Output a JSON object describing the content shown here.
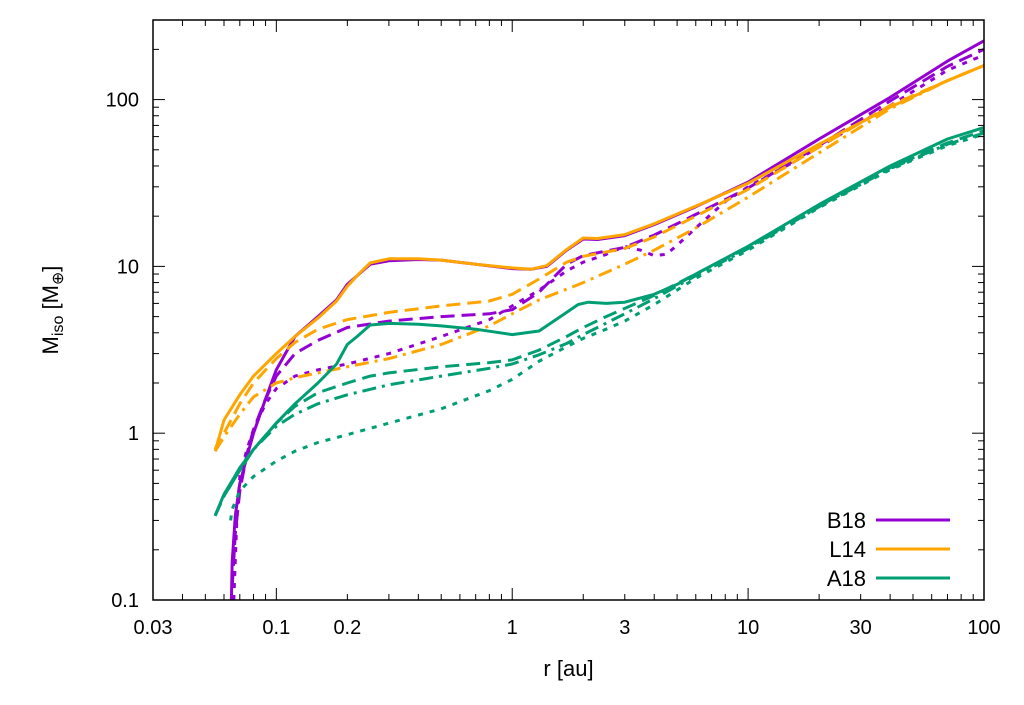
{
  "chart_data": {
    "type": "line",
    "title": "",
    "xlabel": "r [au]",
    "ylabel": {
      "main": "M",
      "sub": "iso",
      "unit_prefix": " [M",
      "unit_sub": "⊕",
      "unit_suffix": "]"
    },
    "xscale": "log",
    "yscale": "log",
    "xlim": [
      0.03,
      100
    ],
    "ylim": [
      0.1,
      300
    ],
    "xticks": [
      {
        "value": 0.03,
        "label": "0.03"
      },
      {
        "value": 0.1,
        "label": "0.1"
      },
      {
        "value": 0.2,
        "label": "0.2"
      },
      {
        "value": 1,
        "label": "1"
      },
      {
        "value": 3,
        "label": "3"
      },
      {
        "value": 10,
        "label": "10"
      },
      {
        "value": 30,
        "label": "30"
      },
      {
        "value": 100,
        "label": "100"
      }
    ],
    "yticks": [
      {
        "value": 0.1,
        "label": "0.1"
      },
      {
        "value": 1,
        "label": "1"
      },
      {
        "value": 10,
        "label": "10"
      },
      {
        "value": 100,
        "label": "100"
      }
    ],
    "grid": false,
    "legend_position": "bottom-right",
    "legend": [
      {
        "name": "B18",
        "color": "#9400d3"
      },
      {
        "name": "L14",
        "color": "#ffa500"
      },
      {
        "name": "A18",
        "color": "#009e73"
      }
    ],
    "series": [
      {
        "model": "B18",
        "style": "solid",
        "color": "#9400d3",
        "x": [
          0.0645,
          0.065,
          0.067,
          0.07,
          0.075,
          0.08,
          0.09,
          0.1,
          0.12,
          0.15,
          0.18,
          0.2,
          0.22,
          0.25,
          0.3,
          0.4,
          0.5,
          0.7,
          1.0,
          1.2,
          1.4,
          1.7,
          2.0,
          2.3,
          3.0,
          4.0,
          6.0,
          10,
          20,
          40,
          70,
          100
        ],
        "y": [
          0.1,
          0.17,
          0.32,
          0.5,
          0.72,
          1.0,
          1.6,
          2.4,
          3.8,
          5.0,
          6.3,
          7.8,
          8.8,
          10.3,
          10.8,
          11.0,
          10.9,
          10.3,
          9.7,
          9.6,
          10.0,
          12.5,
          14.6,
          14.5,
          15.3,
          17.8,
          22.8,
          32,
          58,
          103,
          170,
          225
        ]
      },
      {
        "model": "B18",
        "style": "dashed",
        "color": "#9400d3",
        "x": [
          0.065,
          0.067,
          0.07,
          0.075,
          0.08,
          0.09,
          0.1,
          0.12,
          0.15,
          0.2,
          0.3,
          0.5,
          0.8,
          1.0,
          1.3,
          1.7,
          2.0,
          3.0,
          4.0,
          6.0,
          10,
          20,
          40,
          70,
          100
        ],
        "y": [
          0.12,
          0.25,
          0.45,
          0.75,
          1.05,
          1.6,
          2.2,
          3.0,
          3.6,
          4.3,
          4.7,
          5.0,
          5.2,
          5.5,
          7.0,
          10.3,
          11.6,
          13.0,
          15.4,
          20.5,
          29.5,
          53,
          98,
          158,
          200
        ]
      },
      {
        "model": "B18",
        "style": "dotted",
        "color": "#9400d3",
        "x": [
          0.066,
          0.068,
          0.07,
          0.075,
          0.08,
          0.09,
          0.1,
          0.12,
          0.15,
          0.2,
          0.3,
          0.5,
          0.8,
          1.0,
          1.3,
          1.7,
          2.0,
          2.5,
          3.0,
          3.5,
          4.0,
          4.5,
          5.0,
          6.0,
          8.0,
          10,
          15,
          20,
          30,
          40,
          70,
          100
        ],
        "y": [
          0.1,
          0.3,
          0.55,
          0.8,
          1.05,
          1.5,
          1.85,
          2.2,
          2.4,
          2.6,
          3.0,
          3.8,
          4.8,
          5.8,
          7.2,
          9.4,
          10.6,
          11.8,
          13.2,
          12.5,
          11.6,
          11.8,
          13.4,
          17,
          24.5,
          30,
          41,
          52,
          73,
          92,
          150,
          185
        ]
      },
      {
        "model": "L14",
        "style": "solid",
        "color": "#ffa500",
        "x": [
          0.055,
          0.056,
          0.06,
          0.07,
          0.08,
          0.1,
          0.12,
          0.15,
          0.18,
          0.2,
          0.22,
          0.25,
          0.3,
          0.4,
          0.5,
          0.7,
          1.0,
          1.2,
          1.4,
          1.7,
          2.0,
          2.3,
          3.0,
          4.0,
          6.0,
          10,
          20,
          40,
          70,
          100
        ],
        "y": [
          0.8,
          0.85,
          1.2,
          1.7,
          2.2,
          3.0,
          3.8,
          4.9,
          6.2,
          7.6,
          8.8,
          10.5,
          11.1,
          11.1,
          10.9,
          10.3,
          9.8,
          9.6,
          10.1,
          12.6,
          14.8,
          14.7,
          15.5,
          18,
          23,
          31.5,
          54,
          90,
          130,
          160
        ]
      },
      {
        "model": "L14",
        "style": "dashed",
        "color": "#ffa500",
        "x": [
          0.055,
          0.06,
          0.07,
          0.08,
          0.1,
          0.12,
          0.15,
          0.2,
          0.3,
          0.5,
          0.8,
          1.0,
          1.3,
          1.7,
          2.0,
          3.0,
          4.0,
          6.0,
          10,
          20,
          40,
          70,
          100
        ],
        "y": [
          0.78,
          1.0,
          1.5,
          2.0,
          2.8,
          3.5,
          4.2,
          4.8,
          5.3,
          5.8,
          6.2,
          6.8,
          8.4,
          10.6,
          11.5,
          12.8,
          15.0,
          20.0,
          29,
          52,
          92,
          130,
          160
        ]
      },
      {
        "model": "L14",
        "style": "dashdot",
        "color": "#ffa500",
        "x": [
          0.055,
          0.06,
          0.07,
          0.08,
          0.1,
          0.12,
          0.15,
          0.2,
          0.3,
          0.5,
          0.8,
          1.0,
          1.3,
          1.7,
          2.0,
          3.0,
          4.0,
          6.0,
          10,
          20,
          40,
          70,
          100
        ],
        "y": [
          0.78,
          0.95,
          1.3,
          1.65,
          2.0,
          2.15,
          2.3,
          2.5,
          2.8,
          3.4,
          4.4,
          5.2,
          6.3,
          7.3,
          8.0,
          10.3,
          12.5,
          17,
          26,
          48,
          88,
          130,
          160
        ]
      },
      {
        "model": "A18",
        "style": "solid",
        "color": "#009e73",
        "x": [
          0.055,
          0.056,
          0.06,
          0.065,
          0.07,
          0.08,
          0.1,
          0.12,
          0.15,
          0.18,
          0.2,
          0.22,
          0.25,
          0.3,
          0.4,
          0.5,
          0.7,
          1.0,
          1.3,
          1.6,
          1.9,
          2.1,
          2.5,
          3.0,
          4.0,
          5.0,
          6.0,
          10,
          20,
          40,
          70,
          100
        ],
        "y": [
          0.32,
          0.34,
          0.43,
          0.52,
          0.62,
          0.8,
          1.15,
          1.5,
          2.0,
          2.6,
          3.4,
          3.8,
          4.45,
          4.55,
          4.5,
          4.4,
          4.2,
          3.9,
          4.1,
          5.0,
          5.9,
          6.1,
          6.0,
          6.1,
          6.8,
          7.8,
          9.0,
          13.2,
          23.5,
          40,
          58,
          68
        ]
      },
      {
        "model": "A18",
        "style": "dashed",
        "color": "#009e73",
        "x": [
          0.055,
          0.06,
          0.07,
          0.08,
          0.1,
          0.12,
          0.15,
          0.2,
          0.25,
          0.3,
          0.5,
          0.8,
          1.0,
          1.3,
          1.7,
          2.0,
          2.5,
          3.0,
          4.0,
          6.0,
          10,
          20,
          40,
          70,
          100
        ],
        "y": [
          0.32,
          0.42,
          0.6,
          0.8,
          1.15,
          1.45,
          1.75,
          2.0,
          2.2,
          2.3,
          2.5,
          2.65,
          2.75,
          3.15,
          3.8,
          4.3,
          5.0,
          5.6,
          6.7,
          9.0,
          13,
          23,
          39,
          55,
          65
        ]
      },
      {
        "model": "A18",
        "style": "dotted",
        "color": "#009e73",
        "x": [
          0.064,
          0.065,
          0.07,
          0.08,
          0.1,
          0.12,
          0.15,
          0.2,
          0.3,
          0.5,
          0.8,
          1.0,
          1.3,
          1.7,
          2.0,
          2.5,
          3.0,
          4.0,
          6.0,
          10,
          20,
          40,
          70,
          100
        ],
        "y": [
          0.3,
          0.35,
          0.45,
          0.55,
          0.68,
          0.78,
          0.88,
          0.98,
          1.15,
          1.4,
          1.8,
          2.1,
          2.7,
          3.3,
          3.7,
          4.2,
          4.7,
          5.9,
          8.5,
          12.5,
          22.5,
          38,
          53,
          62
        ]
      },
      {
        "model": "A18",
        "style": "dashdot",
        "color": "#009e73",
        "x": [
          0.055,
          0.06,
          0.07,
          0.08,
          0.1,
          0.12,
          0.15,
          0.2,
          0.3,
          0.5,
          0.8,
          1.0,
          1.3,
          1.7,
          2.0,
          3.0,
          4.0,
          6.0,
          10,
          20,
          40,
          70,
          100
        ],
        "y": [
          0.32,
          0.42,
          0.6,
          0.8,
          1.1,
          1.3,
          1.5,
          1.7,
          1.95,
          2.2,
          2.45,
          2.6,
          2.95,
          3.45,
          3.9,
          5.2,
          6.4,
          8.8,
          12.8,
          22.8,
          38.5,
          54,
          63
        ]
      }
    ]
  }
}
